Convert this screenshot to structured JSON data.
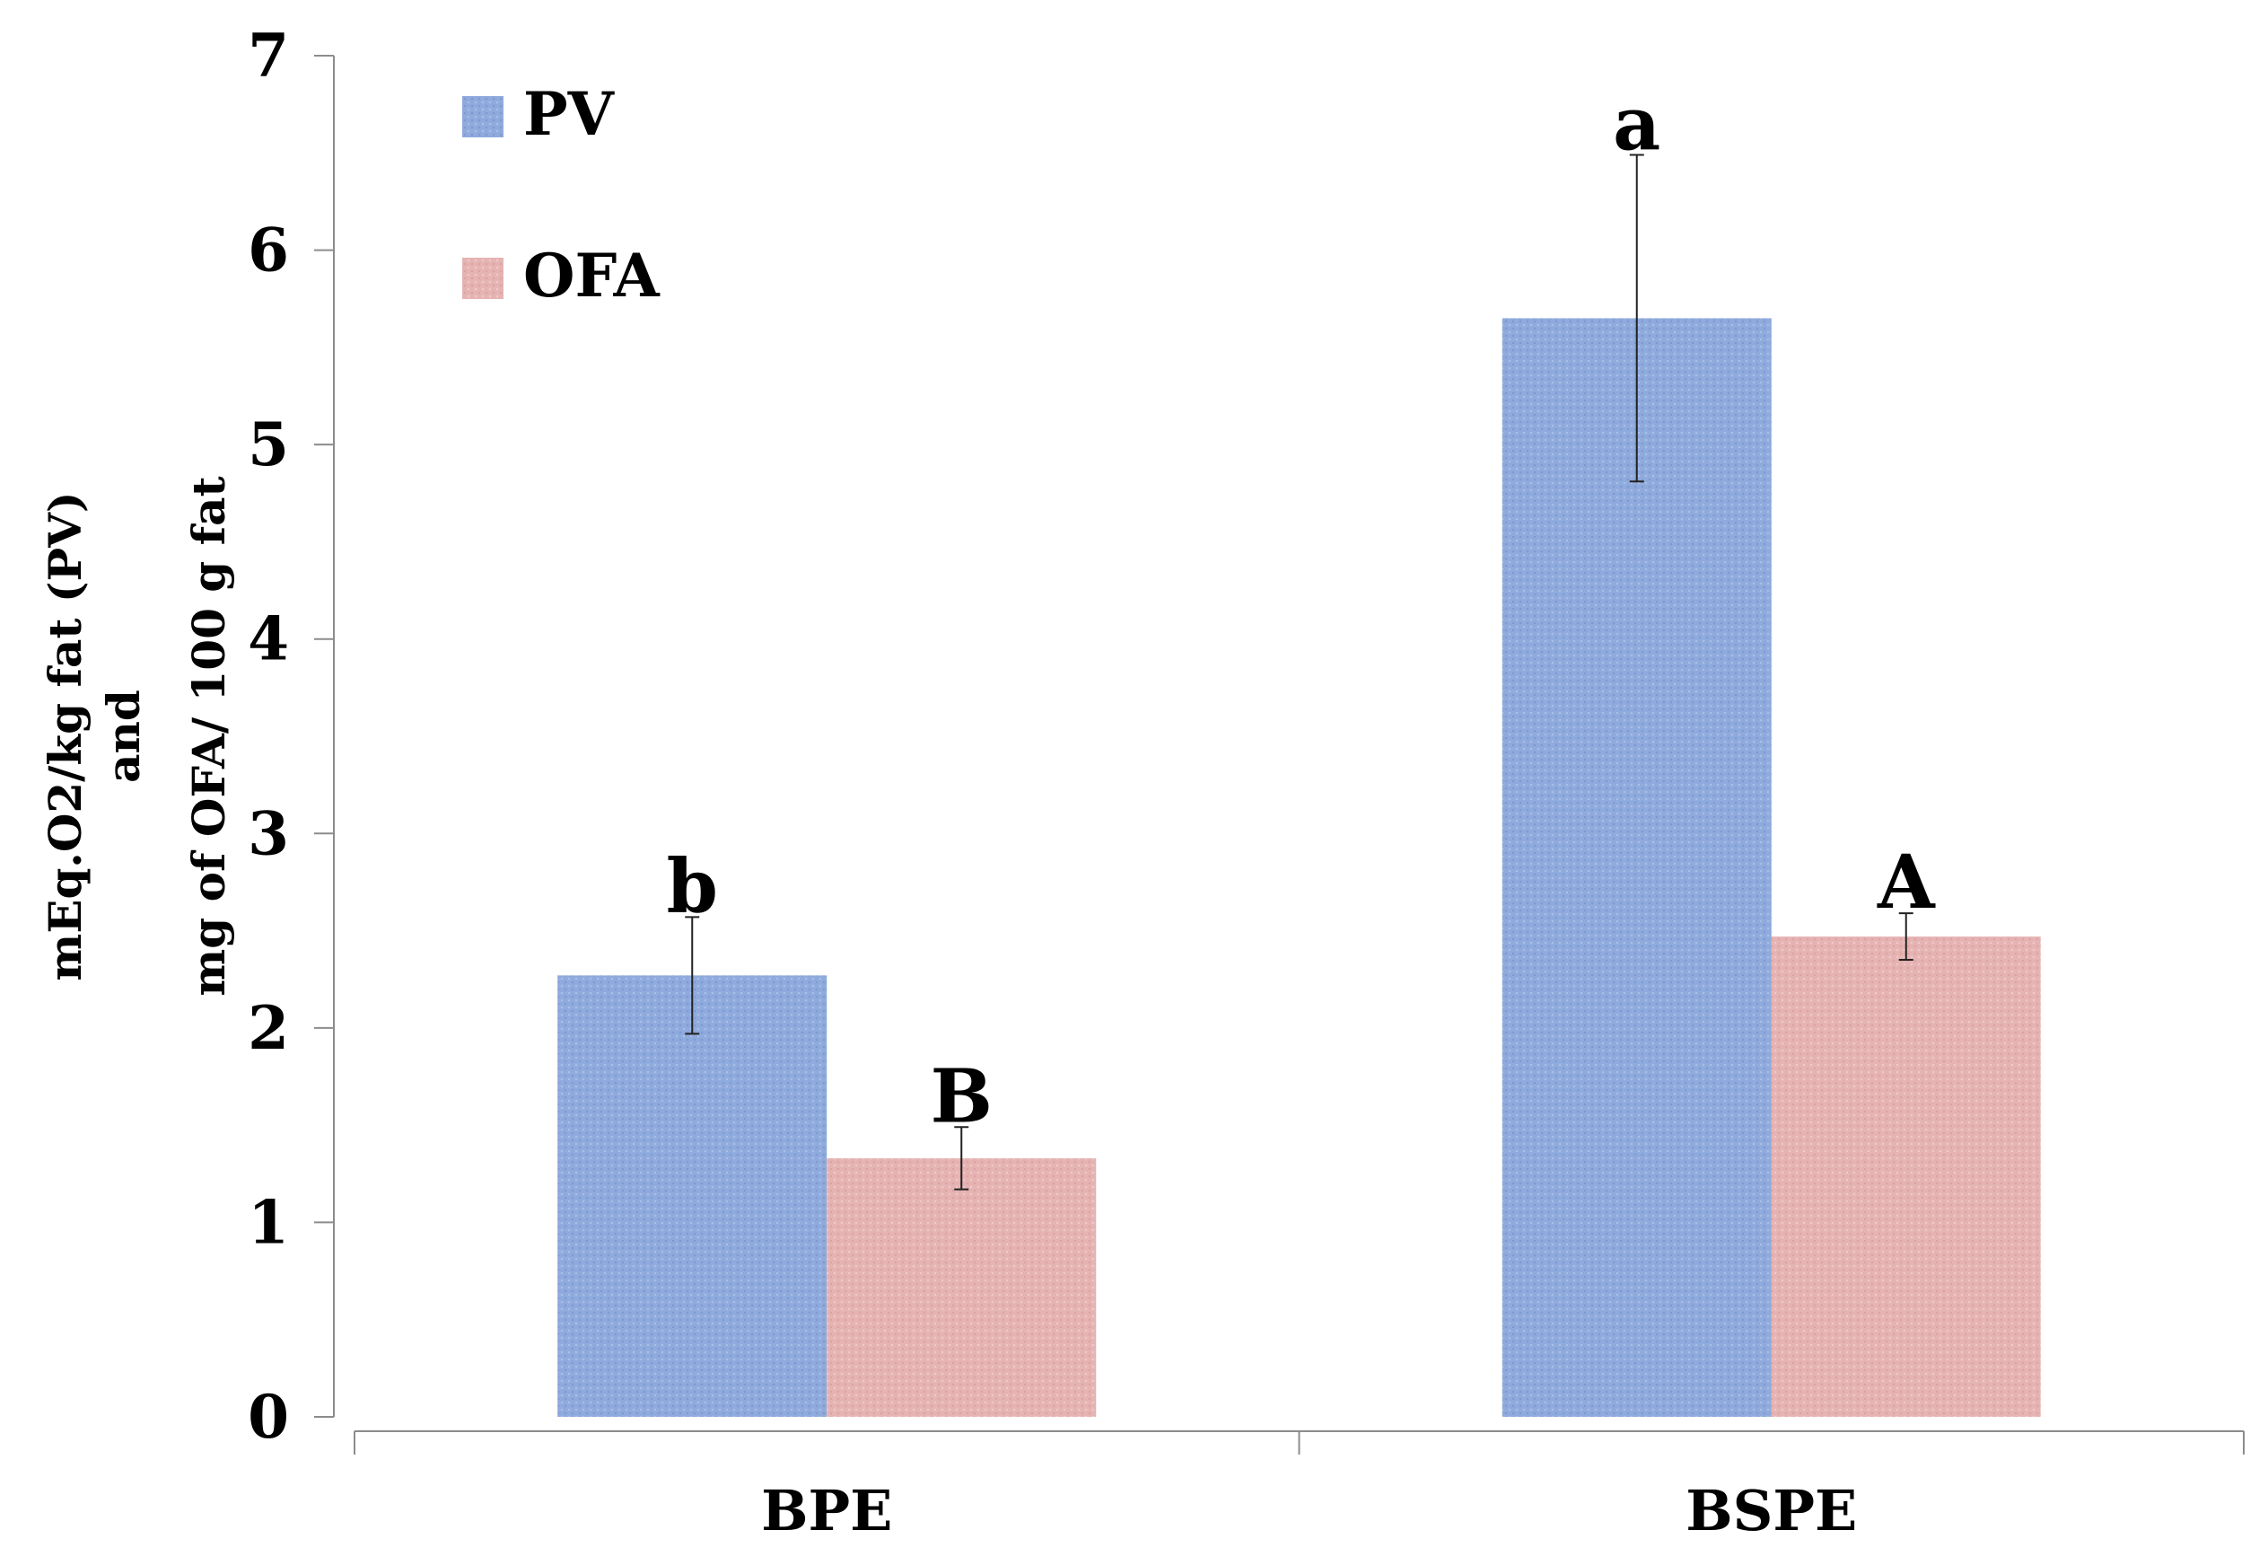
{
  "chart_data": {
    "type": "bar",
    "title": "",
    "xlabel": "",
    "ylabel_lines": [
      "mEq.O2/kg fat (PV)",
      "and",
      "mg of OFA/ 100 g fat"
    ],
    "categories": [
      "BPE",
      "BSPE"
    ],
    "ylim": [
      0,
      7
    ],
    "yticks": [
      0,
      1,
      2,
      3,
      4,
      5,
      6,
      7
    ],
    "grid": false,
    "legend_position": "top-left",
    "series": [
      {
        "name": "PV",
        "color": "#8FAADC",
        "values": [
          2.27,
          5.65
        ],
        "errors": [
          0.3,
          0.84
        ],
        "significance": [
          "b",
          "a"
        ]
      },
      {
        "name": "OFA",
        "color": "#E8B4B4",
        "values": [
          1.33,
          2.47
        ],
        "errors": [
          0.16,
          0.12
        ],
        "significance": [
          "B",
          "A"
        ]
      }
    ]
  }
}
